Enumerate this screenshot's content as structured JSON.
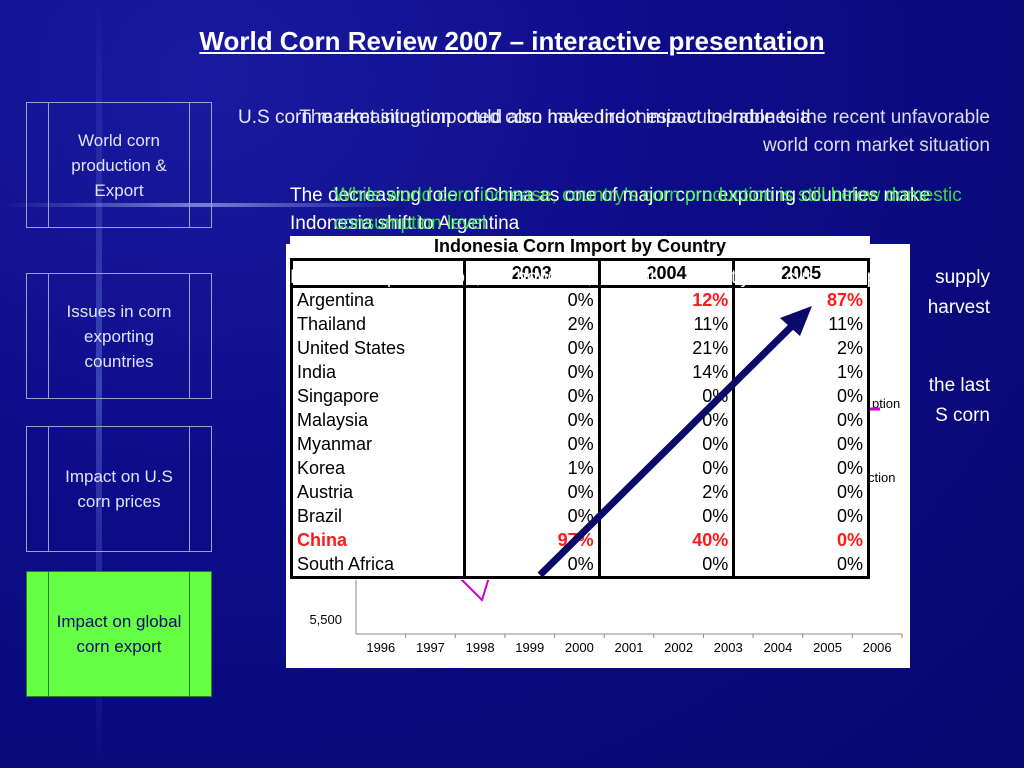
{
  "title": "World Corn Review 2007 – interactive presentation",
  "nav": [
    {
      "label": "World corn production & Export",
      "active": false
    },
    {
      "label": "Issues in corn exporting countries",
      "active": false
    },
    {
      "label": "Impact on U.S corn prices",
      "active": false
    },
    {
      "label": "Impact on global corn export",
      "active": true
    }
  ],
  "paragraphs": {
    "p1a": "U.S corn market situation could also have direct impact to Indonesia",
    "p1b": "The remaining imported corn make Indonesia vulnerable to the recent unfavorable world corn market situation",
    "p2a": "The decreasing role of China as one of major corn exporting countries make Indonesia shift to Argentina",
    "p2b": "While world corn increase, country's corn production is still below domestic consumption level",
    "p3": "Limited production, however, will directly cut export supply",
    "p3b": "harvest",
    "p4": "the last",
    "p4b": "S corn"
  },
  "table": {
    "title": "Indonesia Corn Import by Country",
    "years": [
      "2003",
      "2004",
      "2005"
    ],
    "rows": [
      {
        "country": "Argentina",
        "v": [
          "0%",
          "12%",
          "87%"
        ],
        "red_cols": [
          1,
          2
        ]
      },
      {
        "country": "Thailand",
        "v": [
          "2%",
          "11%",
          "11%"
        ]
      },
      {
        "country": "United States",
        "v": [
          "0%",
          "21%",
          "2%"
        ]
      },
      {
        "country": "India",
        "v": [
          "0%",
          "14%",
          "1%"
        ]
      },
      {
        "country": "Singapore",
        "v": [
          "0%",
          "0%",
          "0%"
        ]
      },
      {
        "country": "Malaysia",
        "v": [
          "0%",
          "0%",
          "0%"
        ]
      },
      {
        "country": "Myanmar",
        "v": [
          "0%",
          "0%",
          "0%"
        ]
      },
      {
        "country": "Korea",
        "v": [
          "1%",
          "0%",
          "0%"
        ]
      },
      {
        "country": "Austria",
        "v": [
          "0%",
          "2%",
          "0%"
        ]
      },
      {
        "country": "Brazil",
        "v": [
          "0%",
          "0%",
          "0%"
        ]
      },
      {
        "country": "China",
        "v": [
          "97%",
          "40%",
          "0%"
        ],
        "red_row": true
      },
      {
        "country": "South Africa",
        "v": [
          "0%",
          "0%",
          "0%"
        ]
      }
    ]
  },
  "chart_data": {
    "type": "line",
    "x": [
      "1996",
      "1997",
      "1998",
      "1999",
      "2000",
      "2001",
      "2002",
      "2003",
      "2004",
      "2005",
      "2006"
    ],
    "ytick_visible": "5,500",
    "legend": [
      "ction",
      "ption"
    ]
  },
  "colors": {
    "background": "#0d0d8a",
    "active_nav": "#66ff44",
    "highlight_green": "#3cff3c",
    "red": "#ff1a1a",
    "arrow": "#0a0a6a"
  }
}
